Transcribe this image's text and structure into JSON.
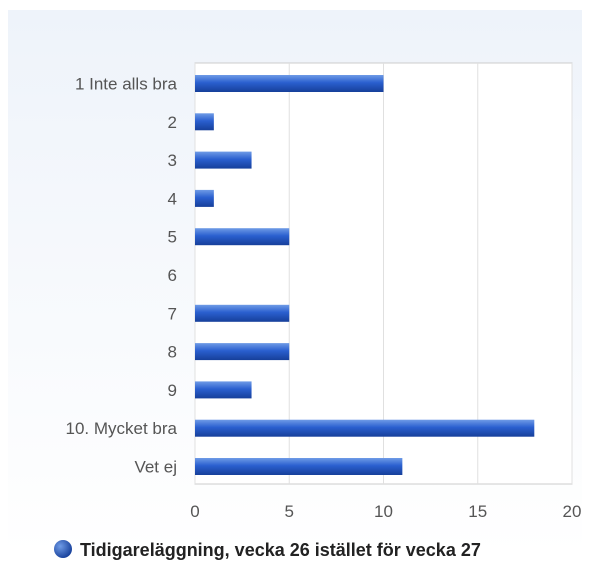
{
  "chart_data": {
    "type": "bar",
    "orientation": "horizontal",
    "categories": [
      "1 Inte alls bra",
      "2",
      "3",
      "4",
      "5",
      "6",
      "7",
      "8",
      "9",
      "10. Mycket bra",
      "Vet ej"
    ],
    "series": [
      {
        "name": "Tidigareläggning, vecka 26 istället för vecka 27",
        "values": [
          10,
          1,
          3,
          1,
          5,
          0,
          5,
          5,
          3,
          18,
          11
        ]
      }
    ],
    "xlim": [
      0,
      20
    ],
    "x_ticks": [
      "0",
      "5",
      "10",
      "15",
      "20"
    ],
    "grid": "vertical",
    "legend": "bottom-center",
    "title": "",
    "xlabel": "",
    "ylabel": "",
    "colors": {
      "bar_light": "#6f9be6",
      "bar_mid": "#2a5fcf",
      "bar_dark": "#163f9a",
      "plot_bg": "#ffffff",
      "panel_top": "#eef3fa",
      "grid": "#e0e0e0",
      "axis": "#cccccc"
    }
  }
}
